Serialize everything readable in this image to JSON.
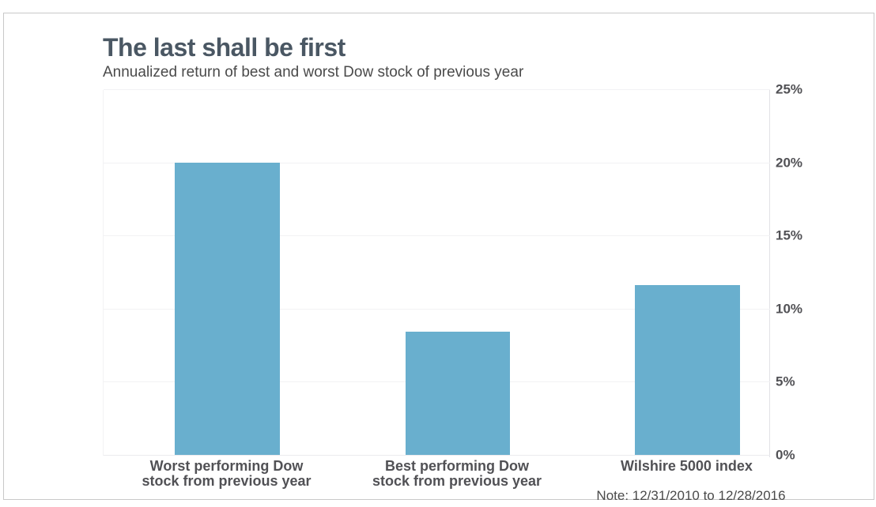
{
  "header": {
    "title": "The last shall be first",
    "subtitle": "Annualized return of best and worst Dow stock of previous year"
  },
  "chart_data": {
    "type": "bar",
    "title": "The last shall be first",
    "subtitle": "Annualized return of best and worst Dow stock of previous year",
    "categories": [
      [
        "Worst performing Dow",
        "stock from previous year"
      ],
      [
        "Best performing Dow",
        "stock from previous year"
      ],
      [
        "Wilshire 5000 index"
      ]
    ],
    "values": [
      20.0,
      8.4,
      11.6
    ],
    "note": "Note: 12/31/2010 to 12/28/2016",
    "xlabel": "",
    "ylabel": "",
    "ylim": [
      0,
      25
    ],
    "yticks": [
      0,
      5,
      10,
      15,
      20,
      25
    ],
    "ytick_labels": [
      "0%",
      "5%",
      "10%",
      "15%",
      "20%",
      "25%"
    ],
    "y_axis_side": "right",
    "grid": true,
    "legend": "none",
    "bar_color": "#69afce"
  },
  "colors": {
    "bar_fill": "#69afce",
    "title_text": "#4a5763",
    "axis_label_text": "#515155",
    "gridline": "#f2f2f4",
    "card_border": "#c9c9c9",
    "background": "#ffffff"
  }
}
